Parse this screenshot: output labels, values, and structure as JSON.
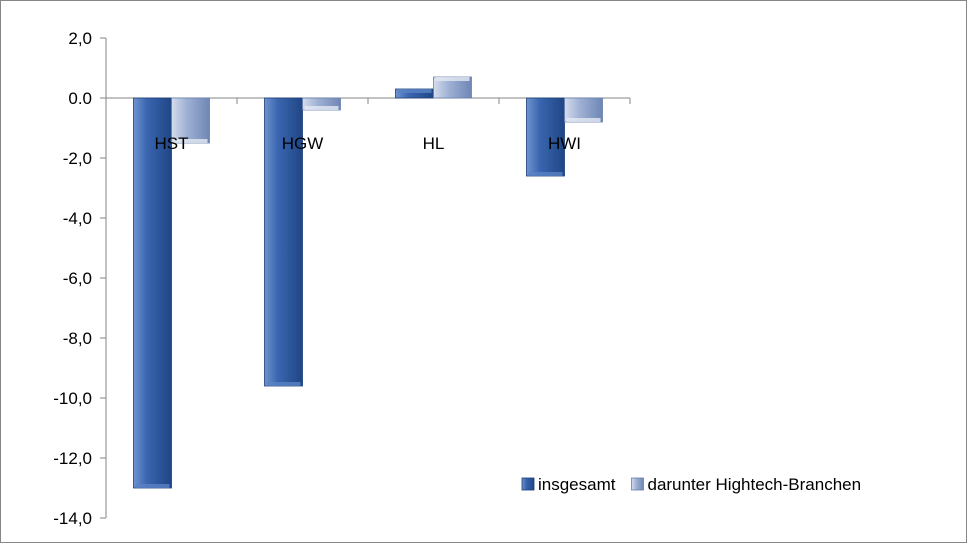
{
  "chart_data": {
    "type": "bar",
    "categories": [
      "HST",
      "HGW",
      "HL",
      "HWI"
    ],
    "series": [
      {
        "name": "insgesamt",
        "values": [
          -13.0,
          -9.6,
          0.3,
          -2.6
        ],
        "color": "#2f5fa8"
      },
      {
        "name": "darunter Hightech-Branchen",
        "values": [
          -1.5,
          -0.4,
          0.7,
          -0.8
        ],
        "color": "#8aa0c8"
      }
    ],
    "ylim": [
      -14,
      2
    ],
    "yticks": [
      2,
      0,
      -2,
      -4,
      -6,
      -8,
      -10,
      -12,
      -14
    ],
    "ytick_labels": [
      "2,0",
      "0.0",
      "-2,0",
      "-4,0",
      "-6,0",
      "-8,0",
      "-10,0",
      "-12,0",
      "-14,0"
    ],
    "grid": false,
    "legend_position": "bottom-right",
    "title": "",
    "xlabel": "",
    "ylabel": ""
  }
}
